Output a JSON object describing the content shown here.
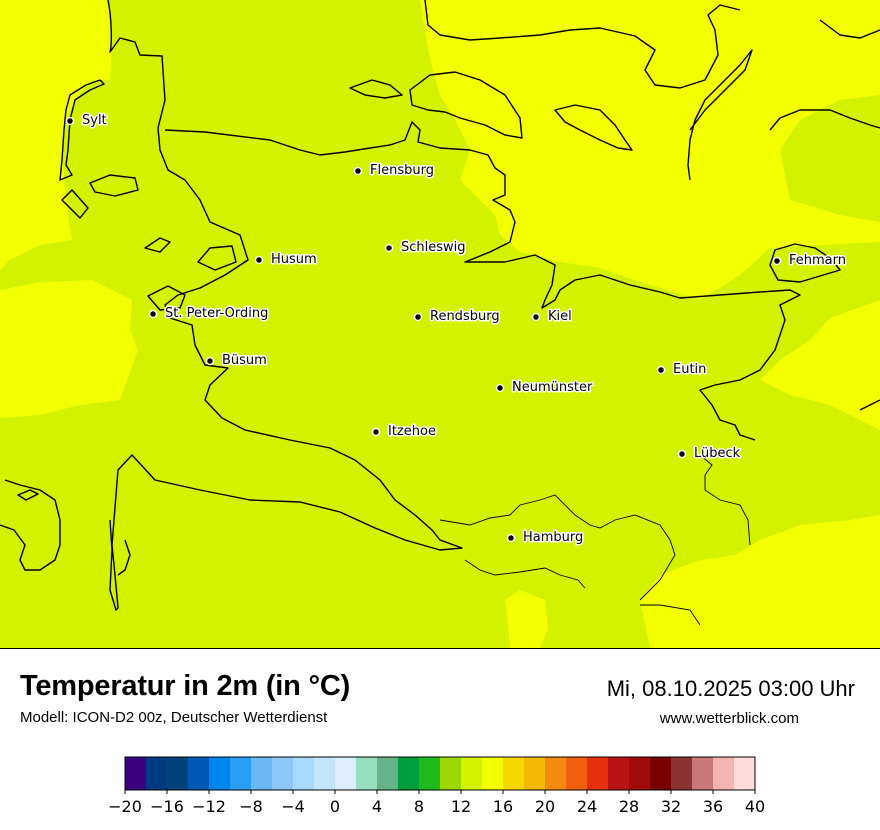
{
  "map": {
    "cities": [
      {
        "name": "Sylt"
      },
      {
        "name": "Flensburg"
      },
      {
        "name": "Schleswig"
      },
      {
        "name": "Husum"
      },
      {
        "name": "St. Peter-Ording"
      },
      {
        "name": "Rendsburg"
      },
      {
        "name": "Kiel"
      },
      {
        "name": "Büsum"
      },
      {
        "name": "Eutin"
      },
      {
        "name": "Neumünster"
      },
      {
        "name": "Fehmarn"
      },
      {
        "name": "Itzehoe"
      },
      {
        "name": "Lübeck"
      },
      {
        "name": "Hamburg"
      }
    ],
    "fill_colors": {
      "12_16": "#d2f200",
      "16_20": "#f3ff00"
    }
  },
  "footer": {
    "title": "Temperatur in 2m (in °C)",
    "model": "Modell: ICON-D2 00z, Deutscher Wetterdienst",
    "datetime": "Mi, 08.10.2025 03:00 Uhr",
    "website": "www.wetterblick.com"
  },
  "colorbar": {
    "ticks": [
      "−20",
      "−16",
      "−12",
      "−8",
      "−4",
      "0",
      "4",
      "8",
      "12",
      "16",
      "20",
      "24",
      "28",
      "32",
      "36",
      "40"
    ],
    "colors": [
      "#3a0080",
      "#003a80",
      "#00427a",
      "#0058b5",
      "#0087ee",
      "#2a9df5",
      "#6ab8f5",
      "#8cc8f8",
      "#a8d8fb",
      "#c4e4fc",
      "#dcedfd",
      "#96e0c0",
      "#66b38a",
      "#009f3c",
      "#1eba1e",
      "#9ad800",
      "#d2f200",
      "#f3ff00",
      "#f4d800",
      "#f5b800",
      "#f58a10",
      "#f06010",
      "#e53010",
      "#b81414",
      "#a00c0c",
      "#7a0000",
      "#8c3232",
      "#c87878",
      "#f5b4b4",
      "#ffdcdc"
    ]
  }
}
